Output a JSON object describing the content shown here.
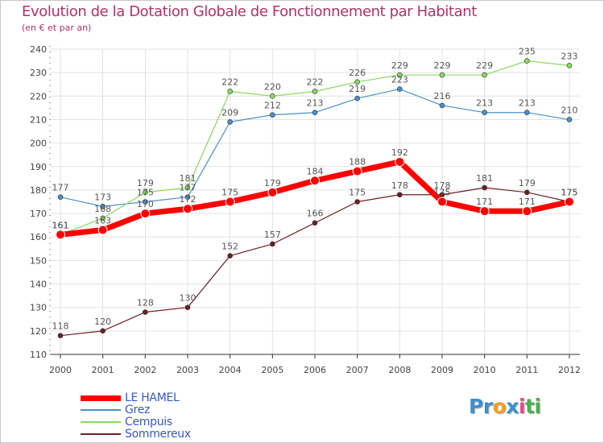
{
  "title": "Evolution de la Dotation Globale de Fonctionnement par Habitant",
  "subtitle": "(en € et par an)",
  "logo": {
    "parts": [
      "Pr",
      "o",
      "x",
      "i",
      "ti"
    ],
    "colors": [
      "#3b8fd0",
      "#f0a020",
      "#3b8fd0",
      "#e84a8a",
      "#4caf50"
    ]
  },
  "chart_data": {
    "type": "line",
    "title": "Evolution de la Dotation Globale de Fonctionnement par Habitant",
    "subtitle": "(en € et par an)",
    "x": [
      "2000",
      "2001",
      "2002",
      "2003",
      "2004",
      "2005",
      "2006",
      "2007",
      "2008",
      "2009",
      "2010",
      "2011",
      "2012"
    ],
    "ylim": [
      110,
      240
    ],
    "yticks": [
      110,
      120,
      130,
      140,
      150,
      160,
      170,
      180,
      190,
      200,
      210,
      220,
      230,
      240
    ],
    "grid": true,
    "legend_position": "bottom-left",
    "series": [
      {
        "name": "Sommereux",
        "color": "#6e1e24",
        "values": [
          118,
          120,
          128,
          130,
          152,
          157,
          166,
          175,
          178,
          178,
          181,
          179,
          175
        ]
      },
      {
        "name": "Grez",
        "color": "#4a90c8",
        "values": [
          177,
          173,
          175,
          177,
          209,
          212,
          213,
          219,
          223,
          216,
          213,
          213,
          210
        ]
      },
      {
        "name": "Cempuis",
        "color": "#88d860",
        "values": [
          161,
          168,
          179,
          181,
          222,
          220,
          222,
          226,
          229,
          229,
          229,
          235,
          233
        ]
      },
      {
        "name": "LE HAMEL",
        "color": "#ff0000",
        "values": [
          161,
          163,
          170,
          172,
          175,
          179,
          184,
          188,
          192,
          175,
          171,
          171,
          175
        ]
      }
    ],
    "legend_order": [
      "LE HAMEL",
      "Grez",
      "Cempuis",
      "Sommereux"
    ]
  }
}
